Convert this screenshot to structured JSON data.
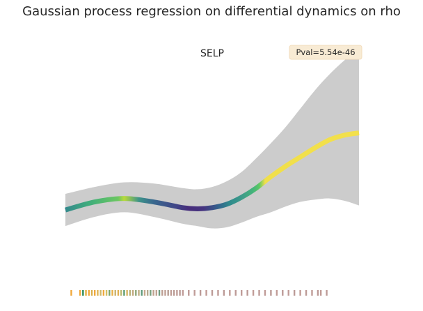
{
  "figure": {
    "title": "Gaussian process regression on differential dynamics on rho"
  },
  "chart_data": {
    "type": "line",
    "title": "SELP",
    "annotation": "Pval=5.54e-46",
    "xlabel": "",
    "ylabel": "",
    "axes_visible": false,
    "grid": false,
    "legend": "none",
    "xlim": [
      0,
      1
    ],
    "ylim": [
      0,
      1
    ],
    "series": [
      {
        "role": "mean",
        "x": [
          0.0,
          0.1,
          0.2,
          0.3,
          0.4,
          0.45,
          0.5,
          0.55,
          0.6,
          0.65,
          0.7,
          0.75,
          0.8,
          0.85,
          0.9,
          0.95,
          1.0
        ],
        "y": [
          0.33,
          0.365,
          0.38,
          0.365,
          0.34,
          0.335,
          0.34,
          0.355,
          0.385,
          0.425,
          0.475,
          0.52,
          0.56,
          0.6,
          0.635,
          0.655,
          0.665
        ]
      }
    ],
    "band": {
      "role": "confidence",
      "x": [
        0.0,
        0.1,
        0.2,
        0.3,
        0.4,
        0.45,
        0.5,
        0.55,
        0.6,
        0.65,
        0.7,
        0.75,
        0.8,
        0.85,
        0.9,
        0.95,
        1.0
      ],
      "upper": [
        0.4,
        0.43,
        0.45,
        0.445,
        0.425,
        0.42,
        0.43,
        0.455,
        0.495,
        0.555,
        0.62,
        0.69,
        0.77,
        0.85,
        0.92,
        0.98,
        1.03
      ],
      "lower": [
        0.26,
        0.3,
        0.32,
        0.3,
        0.27,
        0.26,
        0.25,
        0.255,
        0.275,
        0.3,
        0.32,
        0.345,
        0.365,
        0.375,
        0.38,
        0.37,
        0.35
      ]
    },
    "line_colors": [
      [
        0.0,
        "#34898c"
      ],
      [
        0.08,
        "#3fad7c"
      ],
      [
        0.18,
        "#6cc761"
      ],
      [
        0.2,
        "#b9d93a"
      ],
      [
        0.25,
        "#3e9489"
      ],
      [
        0.3,
        "#39688e"
      ],
      [
        0.38,
        "#414487"
      ],
      [
        0.42,
        "#472d7b"
      ],
      [
        0.47,
        "#453480"
      ],
      [
        0.52,
        "#34618d"
      ],
      [
        0.56,
        "#2f8b8c"
      ],
      [
        0.6,
        "#3e9a8a"
      ],
      [
        0.64,
        "#45b57a"
      ],
      [
        0.66,
        "#5dc863"
      ],
      [
        0.68,
        "#f0df4a"
      ],
      [
        1.0,
        "#f3e04c"
      ]
    ],
    "rug": {
      "x_range": [
        0.02,
        0.89
      ],
      "ticks": [
        {
          "x": 0.02,
          "color": "#f0a93d"
        },
        {
          "x": 0.05,
          "color": "#f0a93d"
        },
        {
          "x": 0.06,
          "color": "#2e8b57"
        },
        {
          "x": 0.07,
          "color": "#e6b040"
        },
        {
          "x": 0.08,
          "color": "#f0a93d"
        },
        {
          "x": 0.09,
          "color": "#d8b04e"
        },
        {
          "x": 0.1,
          "color": "#f0a93d"
        },
        {
          "x": 0.11,
          "color": "#e0b555"
        },
        {
          "x": 0.12,
          "color": "#cfb86a"
        },
        {
          "x": 0.13,
          "color": "#f0a93d"
        },
        {
          "x": 0.14,
          "color": "#d6c060"
        },
        {
          "x": 0.15,
          "color": "#7aa36e"
        },
        {
          "x": 0.16,
          "color": "#e8b048"
        },
        {
          "x": 0.17,
          "color": "#c9b46e"
        },
        {
          "x": 0.18,
          "color": "#e0b050"
        },
        {
          "x": 0.19,
          "color": "#bbb870"
        },
        {
          "x": 0.2,
          "color": "#5e9c70"
        },
        {
          "x": 0.21,
          "color": "#d6b562"
        },
        {
          "x": 0.22,
          "color": "#b8b47a"
        },
        {
          "x": 0.23,
          "color": "#c2aa80"
        },
        {
          "x": 0.24,
          "color": "#8fa87a"
        },
        {
          "x": 0.25,
          "color": "#bfae84"
        },
        {
          "x": 0.26,
          "color": "#5f9b7b"
        },
        {
          "x": 0.27,
          "color": "#c6a88c"
        },
        {
          "x": 0.28,
          "color": "#b5a88e"
        },
        {
          "x": 0.29,
          "color": "#7aa07e"
        },
        {
          "x": 0.3,
          "color": "#bfa38f"
        },
        {
          "x": 0.31,
          "color": "#c0a392"
        },
        {
          "x": 0.32,
          "color": "#6e9b80"
        },
        {
          "x": 0.33,
          "color": "#bd9f93"
        },
        {
          "x": 0.34,
          "color": "#c1a196"
        },
        {
          "x": 0.35,
          "color": "#b79e94"
        },
        {
          "x": 0.36,
          "color": "#c09e96"
        },
        {
          "x": 0.37,
          "color": "#bb9c95"
        },
        {
          "x": 0.38,
          "color": "#c09e98"
        },
        {
          "x": 0.39,
          "color": "#b99b96"
        },
        {
          "x": 0.4,
          "color": "#c09c98"
        },
        {
          "x": 0.42,
          "color": "#bd9b97"
        },
        {
          "x": 0.44,
          "color": "#c09c98"
        },
        {
          "x": 0.46,
          "color": "#bb9a96"
        },
        {
          "x": 0.48,
          "color": "#c19c97"
        },
        {
          "x": 0.5,
          "color": "#bd9b97"
        },
        {
          "x": 0.52,
          "color": "#c09c98"
        },
        {
          "x": 0.54,
          "color": "#bb9a96"
        },
        {
          "x": 0.56,
          "color": "#c19c97"
        },
        {
          "x": 0.58,
          "color": "#bd9b97"
        },
        {
          "x": 0.6,
          "color": "#c09c98"
        },
        {
          "x": 0.62,
          "color": "#bb9a96"
        },
        {
          "x": 0.64,
          "color": "#c19c97"
        },
        {
          "x": 0.66,
          "color": "#bd9b97"
        },
        {
          "x": 0.68,
          "color": "#c09c98"
        },
        {
          "x": 0.7,
          "color": "#bb9a96"
        },
        {
          "x": 0.72,
          "color": "#c19c97"
        },
        {
          "x": 0.74,
          "color": "#bd9b97"
        },
        {
          "x": 0.76,
          "color": "#c09c98"
        },
        {
          "x": 0.78,
          "color": "#bb9a96"
        },
        {
          "x": 0.8,
          "color": "#c19c97"
        },
        {
          "x": 0.82,
          "color": "#bd9b97"
        },
        {
          "x": 0.84,
          "color": "#c09c98"
        },
        {
          "x": 0.86,
          "color": "#bb9a96"
        },
        {
          "x": 0.87,
          "color": "#c19c97"
        },
        {
          "x": 0.89,
          "color": "#bd9b97"
        }
      ]
    },
    "colors": {
      "band": "#cccccc",
      "annotation_bg": "#f8ebd4",
      "annotation_border": "#f2dcbc",
      "text": "#262626"
    }
  }
}
